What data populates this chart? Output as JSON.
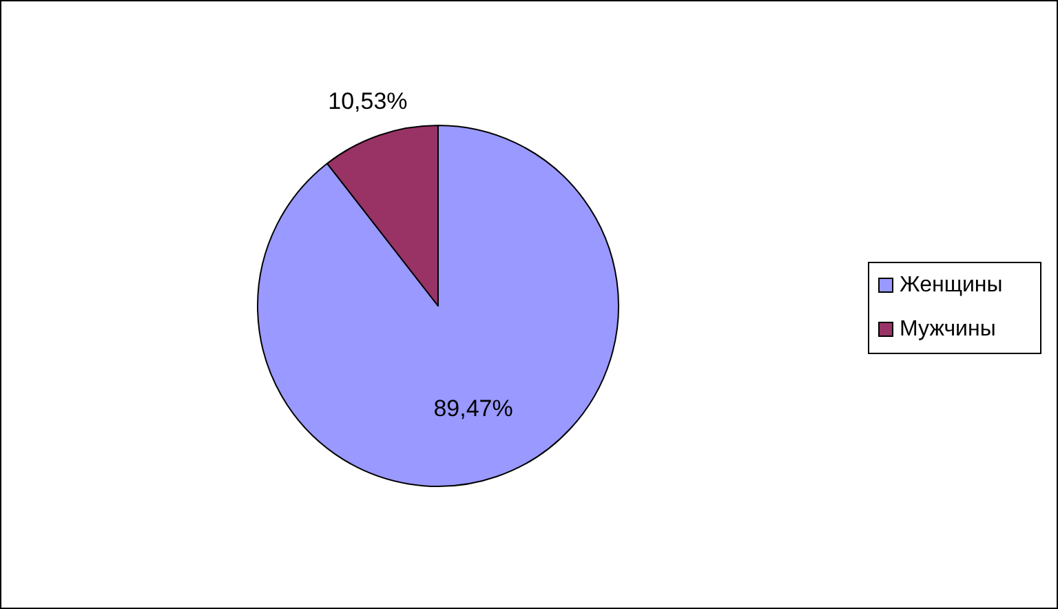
{
  "chart_data": {
    "type": "pie",
    "categories": [
      "Женщины",
      "Мужчины"
    ],
    "values": [
      89.47,
      10.53
    ],
    "colors": [
      "#9999ff",
      "#993366"
    ],
    "value_labels": [
      "89,47%",
      "10,53%"
    ],
    "legend": "right"
  }
}
